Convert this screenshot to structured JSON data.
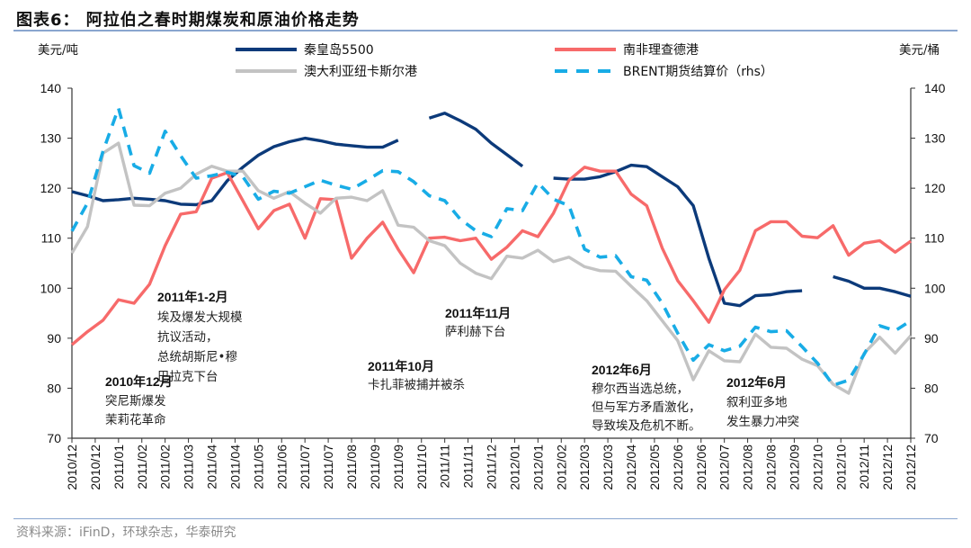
{
  "title": "图表6：  阿拉伯之春时期煤炭和原油价格走势",
  "source": "资料来源：iFinD，环球杂志，华泰研究",
  "chart_data": {
    "type": "line",
    "ylabel_left": "美元/吨",
    "ylabel_right": "美元/桶",
    "ylim_left": [
      70,
      140
    ],
    "ylim_right": [
      70,
      140
    ],
    "yticks_left": [
      "70",
      "80",
      "90",
      "100",
      "110",
      "120",
      "130",
      "140"
    ],
    "yticks_right": [
      "70",
      "80",
      "90",
      "100",
      "110",
      "120",
      "130",
      "140"
    ],
    "xtick_labels": [
      "2010/12",
      "2010/12",
      "2011/01",
      "2011/02",
      "2011/02",
      "2011/03",
      "2011/04",
      "2011/04",
      "2011/05",
      "2011/06",
      "2011/07",
      "2011/07",
      "2011/08",
      "2011/09",
      "2011/09",
      "2011/10",
      "2011/11",
      "2011/11",
      "2011/12",
      "2012/01",
      "2012/01",
      "2012/02",
      "2012/03",
      "2012/03",
      "2012/04",
      "2012/05",
      "2012/06",
      "2012/06",
      "2012/07",
      "2012/08",
      "2012/08",
      "2012/09",
      "2012/10",
      "2012/10",
      "2012/11",
      "2012/12",
      "2012/12"
    ],
    "grid": false,
    "legend_position": "top",
    "x": [
      "2010-12-03",
      "2010-12-17",
      "2010-12-31",
      "2011-01-14",
      "2011-01-28",
      "2011-02-11",
      "2011-02-25",
      "2011-03-11",
      "2011-03-25",
      "2011-04-08",
      "2011-04-22",
      "2011-05-06",
      "2011-05-20",
      "2011-06-03",
      "2011-06-17",
      "2011-07-01",
      "2011-07-15",
      "2011-07-29",
      "2011-08-12",
      "2011-08-26",
      "2011-09-09",
      "2011-09-23",
      "2011-10-07",
      "2011-10-21",
      "2011-11-04",
      "2011-11-18",
      "2011-12-02",
      "2011-12-16",
      "2011-12-30",
      "2012-01-13",
      "2012-01-27",
      "2012-02-10",
      "2012-02-24",
      "2012-03-09",
      "2012-03-23",
      "2012-04-06",
      "2012-04-20",
      "2012-05-04",
      "2012-05-18",
      "2012-06-01",
      "2012-06-15",
      "2012-06-29",
      "2012-07-13",
      "2012-07-27",
      "2012-08-10",
      "2012-08-24",
      "2012-09-07",
      "2012-09-21",
      "2012-10-05",
      "2012-10-19",
      "2012-11-02",
      "2012-11-16",
      "2012-11-30",
      "2012-12-14",
      "2012-12-28"
    ],
    "series": [
      {
        "name": "秦皇岛5500",
        "axis": "left",
        "color": "#0c3a7a",
        "dash": false,
        "values": [
          119.3,
          118.5,
          117.5,
          117.7,
          118,
          117.8,
          117.5,
          116.8,
          116.7,
          117.5,
          121.5,
          124.2,
          126.6,
          128.3,
          129.3,
          130,
          129.5,
          128.8,
          128.5,
          128.2,
          128.2,
          129.6,
          null,
          134,
          135,
          133.5,
          131.8,
          129,
          126.7,
          124.4,
          null,
          122,
          121.8,
          121.8,
          122.3,
          123.3,
          124.6,
          124.3,
          122.3,
          120.3,
          116.5,
          106,
          97,
          96.5,
          98.5,
          98.7,
          99.3,
          99.5,
          null,
          102.3,
          101.4,
          100,
          100,
          99.3,
          98.4
        ]
      },
      {
        "name": "南非理查德港",
        "axis": "left",
        "color": "#f76a6a",
        "dash": false,
        "values": [
          88.7,
          91.3,
          93.6,
          97.7,
          97,
          100.8,
          108.5,
          114.8,
          115.3,
          122,
          123.1,
          117.5,
          111.9,
          115.5,
          116.8,
          110,
          117.9,
          117.7,
          106,
          110,
          113.2,
          107.8,
          103.1,
          110,
          110.2,
          109.5,
          110,
          105.8,
          108.2,
          111.5,
          110.3,
          115,
          121.6,
          124.2,
          123.4,
          123.4,
          118.8,
          116.5,
          108,
          101.5,
          97.5,
          93.2,
          99.7,
          103.6,
          111.5,
          113.3,
          113.3,
          110.4,
          110.1,
          112.5,
          106.6,
          109,
          109.5,
          107.2,
          109.4
        ]
      },
      {
        "name": "澳大利亚纽卡斯尔港",
        "axis": "left",
        "color": "#c3c3c3",
        "dash": false,
        "values": [
          107,
          112.3,
          127,
          129,
          116.6,
          116.5,
          119,
          120,
          122.8,
          124.4,
          123.4,
          123.4,
          119.5,
          118,
          119.3,
          117,
          115,
          118,
          118.2,
          117.5,
          119.5,
          112.6,
          112.2,
          109.5,
          108.5,
          105,
          103,
          101.9,
          106.4,
          106,
          107.6,
          105.3,
          106.2,
          104.3,
          103.5,
          103.4,
          100.4,
          97.5,
          93.5,
          89.5,
          81.7,
          87.5,
          85.5,
          85.3,
          90.8,
          88.2,
          88,
          85.8,
          84.5,
          80.8,
          79,
          87,
          90.2,
          87,
          90.5
        ]
      },
      {
        "name": "BRENT期货结算价（rhs）",
        "axis": "right",
        "color": "#18ace6",
        "dash": true,
        "values": [
          111.4,
          117,
          127.4,
          136,
          124.5,
          123,
          131.4,
          126.5,
          122,
          122.5,
          123.2,
          122.3,
          117.8,
          119.4,
          119,
          120.3,
          121.6,
          120.6,
          119.8,
          121.6,
          123.5,
          123.3,
          121.3,
          118.5,
          117.5,
          113.8,
          111.5,
          110.3,
          115.9,
          115.5,
          121.1,
          117.8,
          116.5,
          107.8,
          106.2,
          106.5,
          102.3,
          101.6,
          97,
          91,
          85.6,
          88.7,
          87.5,
          88.4,
          92.2,
          91.3,
          91.5,
          88.3,
          85,
          80.6,
          81.6,
          86.8,
          92.5,
          91.5,
          93.5
        ]
      }
    ],
    "annotations": [
      {
        "head": "2011年1-2月",
        "lines": [
          "埃及爆发大规模",
          "抗议活动，",
          "总统胡斯尼•穆",
          "巴拉克下台"
        ]
      },
      {
        "head": "2010年12月",
        "lines": [
          "突尼斯爆发",
          "茉莉花革命"
        ]
      },
      {
        "head": "2011年10月",
        "lines": [
          "卡扎菲被捕并被杀"
        ]
      },
      {
        "head": "2011年11月",
        "lines": [
          "萨利赫下台"
        ]
      },
      {
        "head": "2012年6月",
        "lines": [
          "穆尔西当选总统，",
          "但与军方矛盾激化，",
          "导致埃及危机不断。"
        ]
      },
      {
        "head": "2012年6月",
        "lines": [
          "叙利亚多地",
          "发生暴力冲突"
        ]
      }
    ]
  }
}
